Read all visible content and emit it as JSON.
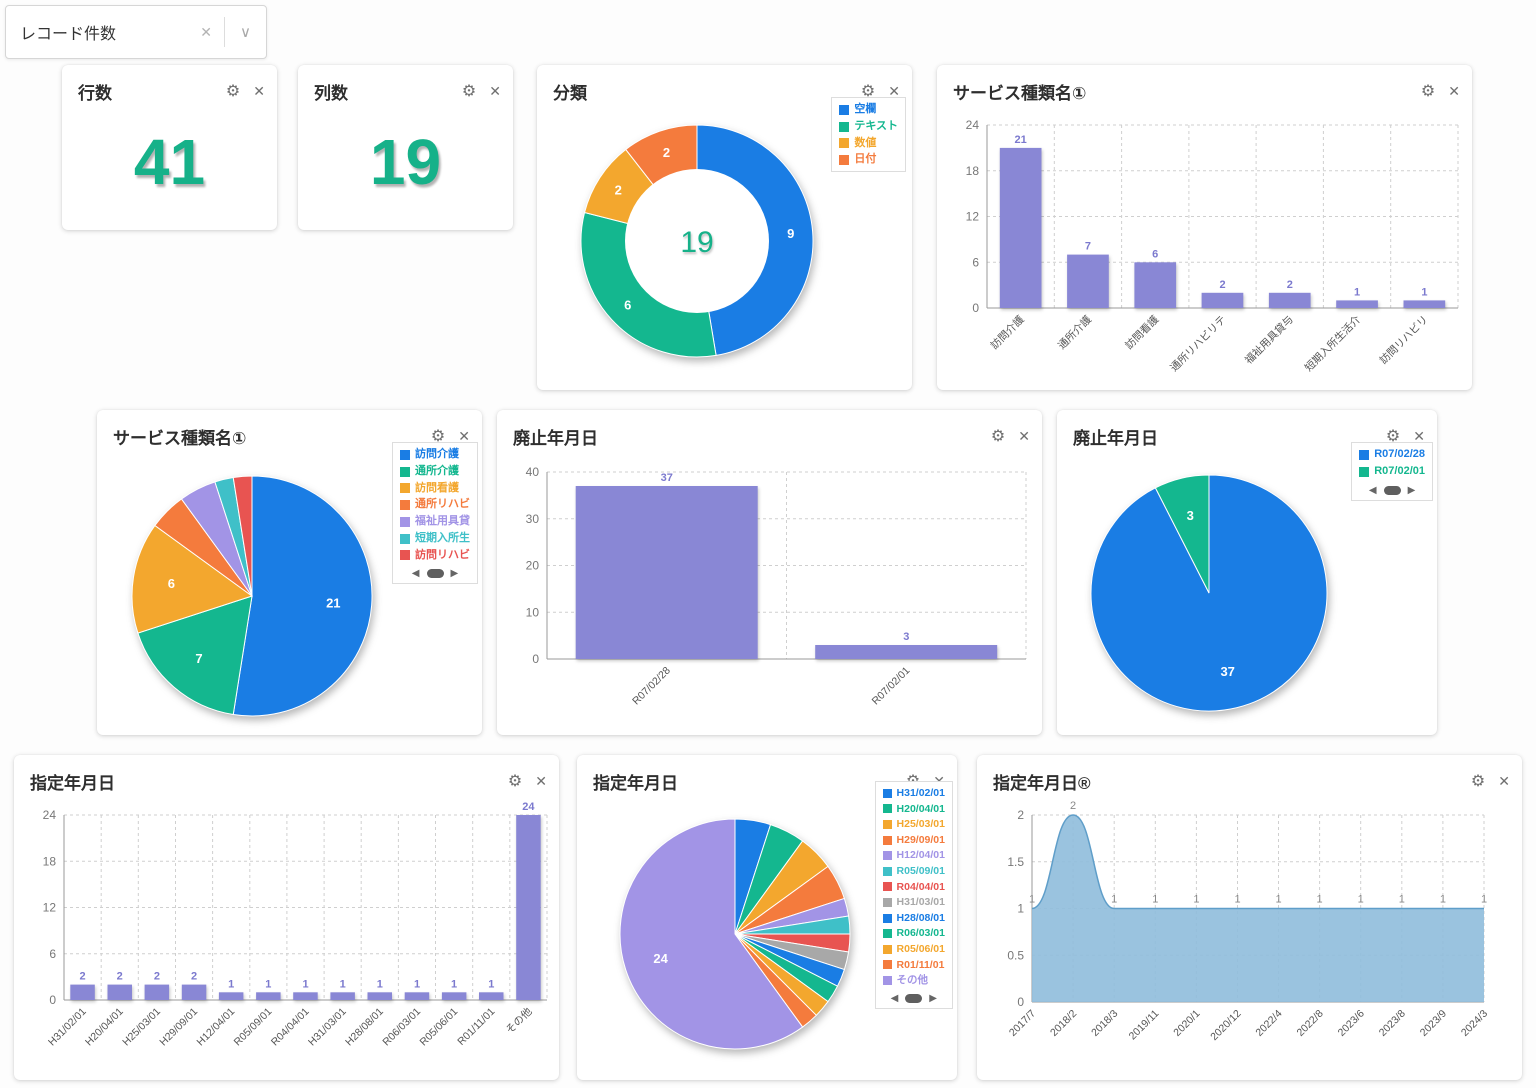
{
  "filter": {
    "value": "レコード件数"
  },
  "icons": {
    "gear": "⚙",
    "close": "✕",
    "clear": "✕",
    "chevron": "∨",
    "prev": "◀",
    "next": "▶"
  },
  "colors": {
    "metric": "#16b189",
    "bar": "#8987d5",
    "bar_label": "#7b79ce",
    "area_fill": "#8fbcdb",
    "area_line": "#5f9ec9",
    "palette": {
      "blue": "#1a7de4",
      "green": "#14b78f",
      "yellow": "#f3a72e",
      "orange": "#f47b3d",
      "purple": "#a294e6",
      "teal": "#3fc0c8",
      "red": "#e85451",
      "gray": "#a8a8a8"
    }
  },
  "metrics": [
    {
      "title": "行数",
      "value": "41"
    },
    {
      "title": "列数",
      "value": "19"
    }
  ],
  "cards": {
    "category": {
      "title": "分類"
    },
    "service_bar": {
      "title": "サービス種類名①"
    },
    "service_pie": {
      "title": "サービス種類名①"
    },
    "abolish_bar": {
      "title": "廃止年月日"
    },
    "abolish_pie": {
      "title": "廃止年月日"
    },
    "designate_bar": {
      "title": "指定年月日"
    },
    "designate_pie": {
      "title": "指定年月日"
    },
    "designate_area": {
      "title": "指定年月日®"
    }
  },
  "chart_data": [
    {
      "id": "category-donut",
      "type": "pie",
      "donut": true,
      "title": "分類",
      "center_label": "19",
      "labels": [
        "空欄",
        "テキスト",
        "数値",
        "日付"
      ],
      "values": [
        9,
        6,
        2,
        2
      ],
      "colors": [
        "blue",
        "green",
        "yellow",
        "orange"
      ],
      "slice_labels": [
        "9",
        "6",
        "2",
        "2"
      ],
      "legend": {
        "position": "top-right",
        "items": [
          "空欄",
          "テキスト",
          "数値",
          "日付"
        ],
        "pagination": false
      }
    },
    {
      "id": "service-bar",
      "type": "bar",
      "title": "サービス種類名①",
      "categories": [
        "訪問介護",
        "通所介護",
        "訪問看護",
        "通所リハビリテ",
        "福祉用具貸与",
        "短期入所生活介",
        "訪問リハビリ"
      ],
      "values": [
        21,
        7,
        6,
        2,
        2,
        1,
        1
      ],
      "ylim": [
        0,
        24
      ],
      "yticks": [
        0,
        6,
        12,
        18,
        24
      ],
      "grid": true
    },
    {
      "id": "service-pie",
      "type": "pie",
      "title": "サービス種類名①",
      "labels": [
        "訪問介護",
        "通所介護",
        "訪問看護",
        "通所リハビ",
        "福祉用具貸",
        "短期入所生",
        "訪問リハビ"
      ],
      "values": [
        21,
        7,
        6,
        2,
        2,
        1,
        1
      ],
      "colors": [
        "blue",
        "green",
        "yellow",
        "orange",
        "purple",
        "teal",
        "red"
      ],
      "slice_labels": [
        "21",
        "7",
        "6",
        "",
        "",
        "",
        ""
      ],
      "legend": {
        "position": "top-right",
        "items": [
          "訪問介護",
          "通所介護",
          "訪問看護",
          "通所リハビ",
          "福祉用具貸",
          "短期入所生",
          "訪問リハビ"
        ],
        "pagination": true
      }
    },
    {
      "id": "abolish-bar",
      "type": "bar",
      "title": "廃止年月日",
      "categories": [
        "R07/02/28",
        "R07/02/01"
      ],
      "values": [
        37,
        3
      ],
      "ylim": [
        0,
        40
      ],
      "yticks": [
        0,
        10,
        20,
        30,
        40
      ],
      "grid": true
    },
    {
      "id": "abolish-pie",
      "type": "pie",
      "title": "廃止年月日",
      "labels": [
        "R07/02/28",
        "R07/02/01"
      ],
      "values": [
        37,
        3
      ],
      "colors": [
        "blue",
        "green"
      ],
      "slice_labels": [
        "37",
        "3"
      ],
      "legend": {
        "position": "top-right",
        "items": [
          "R07/02/28",
          "R07/02/01"
        ],
        "pagination": true
      }
    },
    {
      "id": "designate-bar",
      "type": "bar",
      "title": "指定年月日",
      "categories": [
        "H31/02/01",
        "H20/04/01",
        "H25/03/01",
        "H29/09/01",
        "H12/04/01",
        "R05/09/01",
        "R04/04/01",
        "H31/03/01",
        "H28/08/01",
        "R06/03/01",
        "R05/06/01",
        "R01/11/01",
        "その他"
      ],
      "values": [
        2,
        2,
        2,
        2,
        1,
        1,
        1,
        1,
        1,
        1,
        1,
        1,
        24
      ],
      "ylim": [
        0,
        24
      ],
      "yticks": [
        0,
        6,
        12,
        18,
        24
      ],
      "grid": true
    },
    {
      "id": "designate-pie",
      "type": "pie",
      "title": "指定年月日",
      "labels": [
        "H31/02/01",
        "H20/04/01",
        "H25/03/01",
        "H29/09/01",
        "H12/04/01",
        "R05/09/01",
        "R04/04/01",
        "H31/03/01",
        "H28/08/01",
        "R06/03/01",
        "R05/06/01",
        "R01/11/01",
        "その他"
      ],
      "values": [
        2,
        2,
        2,
        2,
        1,
        1,
        1,
        1,
        1,
        1,
        1,
        1,
        24
      ],
      "colors": [
        "blue",
        "green",
        "yellow",
        "orange",
        "purple",
        "teal",
        "red",
        "gray",
        "blue",
        "green",
        "yellow",
        "orange",
        "purple"
      ],
      "slice_labels": [
        "",
        "",
        "",
        "",
        "",
        "",
        "",
        "",
        "",
        "",
        "",
        "",
        "24"
      ],
      "legend": {
        "position": "top-right",
        "items": [
          "H31/02/01",
          "H20/04/01",
          "H25/03/01",
          "H29/09/01",
          "H12/04/01",
          "R05/09/01",
          "R04/04/01",
          "H31/03/01",
          "H28/08/01",
          "R06/03/01",
          "R05/06/01",
          "R01/11/01",
          "その他"
        ],
        "pagination": true
      }
    },
    {
      "id": "designate-area",
      "type": "area",
      "title": "指定年月日®",
      "x": [
        "2017/7",
        "2018/2",
        "2018/3",
        "2019/11",
        "2020/1",
        "2020/12",
        "2022/4",
        "2022/8",
        "2023/6",
        "2023/8",
        "2023/9",
        "2024/3"
      ],
      "values": [
        1,
        2,
        1,
        1,
        1,
        1,
        1,
        1,
        1,
        1,
        1,
        1
      ],
      "point_labels": [
        "1",
        "2",
        "1",
        "1",
        "1",
        "1",
        "1",
        "1",
        "1",
        "1",
        "1",
        "1"
      ],
      "ylim": [
        0,
        2
      ],
      "yticks": [
        0,
        0.5,
        1,
        1.5,
        2
      ],
      "grid": true
    }
  ]
}
